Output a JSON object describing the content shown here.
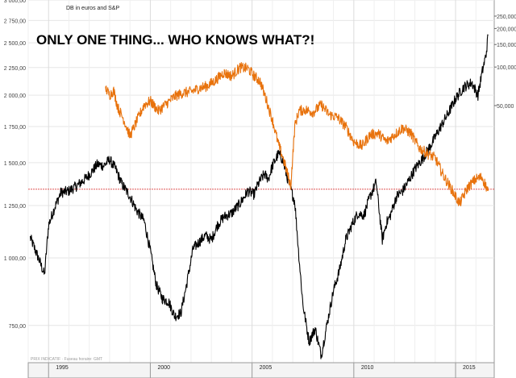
{
  "chart_data": {
    "type": "line",
    "title": "ONLY ONE THING... WHO KNOWS WHAT?!",
    "subtitle": "DB in euros and S&P",
    "footer": "PRIX INDICATIF · Fuseau horaire: GMT",
    "x_range": [
      1994.0,
      2016.9
    ],
    "x_ticks": [
      {
        "label": "1995",
        "x": 1995
      },
      {
        "label": "2000",
        "x": 2000
      },
      {
        "label": "2005",
        "x": 2005
      },
      {
        "label": "2010",
        "x": 2010
      },
      {
        "label": "2015",
        "x": 2015
      }
    ],
    "left_axis": {
      "scale": "log",
      "ylim": [
        640,
        3000
      ],
      "tick_values": [
        3000,
        2750,
        2500,
        2250,
        2000,
        1750,
        1500,
        1250,
        1000,
        750
      ],
      "tick_labels": [
        "3 000,00",
        "2 750,00",
        "2 500,00",
        "2 250,00",
        "2 000,00",
        "1 750,00",
        "1 500,00",
        "1 250,00",
        "1 000,00",
        "750,00"
      ]
    },
    "right_axis": {
      "scale": "log",
      "tick_values": [
        250000,
        200000,
        150000,
        100000,
        50000
      ],
      "tick_labels": [
        "250,000",
        "200,000",
        "150,000",
        "100,000",
        "50,000"
      ]
    },
    "reference_line": {
      "value": 1340,
      "axis": "left",
      "color": "#e05555"
    },
    "grid": true,
    "series": [
      {
        "axis": "left",
        "color": "#000000",
        "x": [
          1994.1,
          1994.5,
          1994.8,
          1995.0,
          1995.3,
          1995.6,
          1996.0,
          1996.4,
          1996.8,
          1997.1,
          1997.4,
          1997.7,
          1998.0,
          1998.3,
          1998.6,
          1999.0,
          1999.3,
          1999.7,
          2000.0,
          2000.3,
          2000.6,
          2000.9,
          2001.2,
          2001.5,
          2001.8,
          2002.1,
          2002.4,
          2002.7,
          2003.0,
          2003.3,
          2003.6,
          2004.0,
          2004.4,
          2004.8,
          2005.1,
          2005.3,
          2005.6,
          2005.8,
          2006.0,
          2006.3,
          2006.5,
          2006.7,
          2006.9,
          2007.1,
          2007.3,
          2007.5,
          2007.8,
          2008.1,
          2008.4,
          2008.7,
          2009.0,
          2009.3,
          2009.6,
          2009.9,
          2010.2,
          2010.5,
          2010.8,
          2011.1,
          2011.4,
          2011.6,
          2011.8,
          2012.1,
          2012.4,
          2012.7,
          2013.0,
          2013.4,
          2013.8,
          2014.2,
          2014.6,
          2015.0,
          2015.4,
          2015.8,
          2016.1,
          2016.3,
          2016.5,
          2016.6
        ],
        "y": [
          1090,
          1000,
          930,
          1150,
          1240,
          1320,
          1330,
          1360,
          1400,
          1440,
          1490,
          1480,
          1520,
          1460,
          1370,
          1300,
          1230,
          1170,
          1030,
          890,
          840,
          830,
          780,
          790,
          900,
          1040,
          1070,
          1100,
          1080,
          1150,
          1190,
          1210,
          1260,
          1330,
          1310,
          1370,
          1430,
          1400,
          1480,
          1560,
          1520,
          1420,
          1340,
          1270,
          1010,
          820,
          700,
          740,
          660,
          760,
          870,
          950,
          1080,
          1150,
          1210,
          1200,
          1300,
          1380,
          1080,
          1160,
          1200,
          1300,
          1330,
          1390,
          1460,
          1530,
          1620,
          1730,
          1840,
          1970,
          2070,
          2110,
          2000,
          2200,
          2380,
          2580
        ]
      },
      {
        "axis": "left",
        "color": "#e8720c",
        "x": [
          1997.8,
          1998.0,
          1998.2,
          1998.4,
          1998.7,
          1999.0,
          1999.3,
          1999.7,
          2000.0,
          2000.4,
          2000.8,
          2001.2,
          2001.6,
          2002.0,
          2002.4,
          2002.8,
          2003.2,
          2003.6,
          2004.0,
          2004.4,
          2004.8,
          2005.1,
          2005.4,
          2005.7,
          2006.0,
          2006.3,
          2006.5,
          2006.7,
          2006.9,
          2007.1,
          2007.3,
          2007.6,
          2008.0,
          2008.4,
          2008.8,
          2009.2,
          2009.6,
          2010.0,
          2010.4,
          2010.8,
          2011.2,
          2011.6,
          2012.0,
          2012.4,
          2012.8,
          2013.2,
          2013.6,
          2014.0,
          2014.4,
          2014.8,
          2015.2,
          2015.6,
          2016.0,
          2016.3,
          2016.6
        ],
        "y": [
          2060,
          2000,
          2040,
          1900,
          1800,
          1680,
          1780,
          1920,
          1950,
          1870,
          1930,
          1990,
          2020,
          2030,
          2060,
          2080,
          2130,
          2200,
          2170,
          2250,
          2240,
          2170,
          2120,
          1960,
          1800,
          1620,
          1540,
          1450,
          1360,
          1750,
          1870,
          1880,
          1860,
          1920,
          1840,
          1820,
          1750,
          1640,
          1610,
          1690,
          1700,
          1640,
          1690,
          1740,
          1700,
          1600,
          1560,
          1530,
          1420,
          1340,
          1260,
          1350,
          1400,
          1410,
          1330
        ]
      }
    ]
  }
}
